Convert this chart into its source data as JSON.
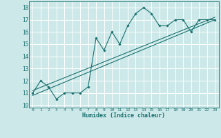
{
  "xlabel": "Humidex (Indice chaleur)",
  "background_color": "#cce8e8",
  "grid_color": "#ffffff",
  "line_color": "#1a7070",
  "xlim": [
    -0.5,
    23.5
  ],
  "ylim": [
    9.8,
    18.5
  ],
  "xticks": [
    0,
    1,
    2,
    3,
    4,
    5,
    6,
    7,
    8,
    9,
    10,
    11,
    12,
    13,
    14,
    15,
    16,
    17,
    18,
    19,
    20,
    21,
    22,
    23
  ],
  "yticks": [
    10,
    11,
    12,
    13,
    14,
    15,
    16,
    17,
    18
  ],
  "x_data": [
    0,
    1,
    2,
    3,
    4,
    5,
    6,
    7,
    8,
    9,
    10,
    11,
    12,
    13,
    14,
    15,
    16,
    17,
    18,
    19,
    20,
    21,
    22,
    23
  ],
  "y_data": [
    11,
    12,
    11.5,
    10.5,
    11,
    11,
    11,
    11.5,
    15.5,
    14.5,
    16,
    15.0,
    16.5,
    17.5,
    18,
    17.5,
    16.5,
    16.5,
    17,
    17,
    16,
    17,
    17,
    17
  ],
  "reg_line1_x": [
    0,
    23
  ],
  "reg_line1_y": [
    10.8,
    17.0
  ],
  "reg_line2_x": [
    0,
    23
  ],
  "reg_line2_y": [
    11.2,
    17.2
  ]
}
